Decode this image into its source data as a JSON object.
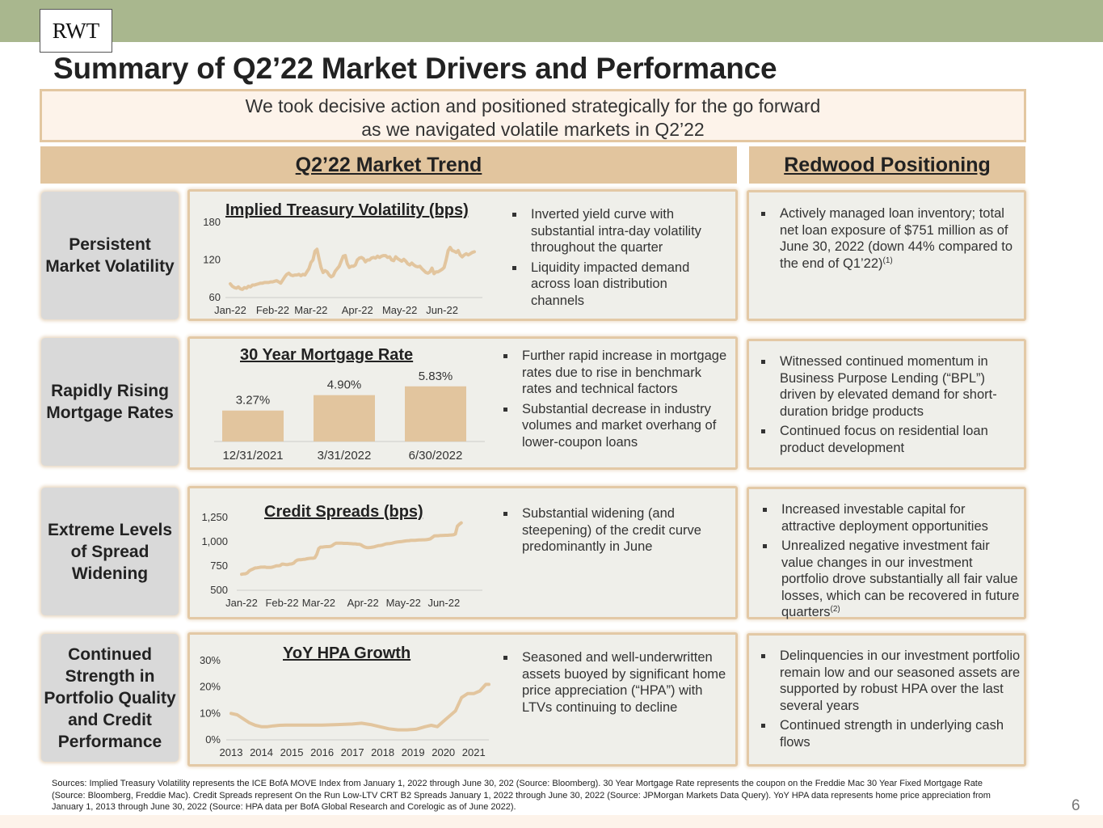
{
  "header": {
    "logo": "RWT",
    "title": "Summary of Q2’22 Market Drivers and Performance",
    "banner_line1": "We took decisive action and positioned strategically for the go forward",
    "banner_line2": "as we navigated volatile markets in Q2’22"
  },
  "columns": {
    "market_trend": "Q2’22 Market Trend",
    "positioning": "Redwood Positioning"
  },
  "rows": [
    {
      "label": "Persistent Market Volatility",
      "trend_bullets": [
        "Inverted yield curve with substantial intra-day volatility throughout the quarter",
        "Liquidity impacted demand across loan distribution channels"
      ],
      "positioning_bullets": [
        {
          "text": "Actively managed loan inventory; total net loan exposure of $751 million as of June 30, 2022 (down 44% compared to the end of Q1’22)",
          "sup": "(1)"
        }
      ]
    },
    {
      "label": "Rapidly Rising Mortgage Rates",
      "trend_bullets": [
        "Further rapid increase in mortgage rates due to rise in benchmark rates and technical factors",
        "Substantial decrease in industry volumes and market overhang of lower-coupon loans"
      ],
      "positioning_bullets": [
        {
          "text": "Witnessed continued momentum in Business Purpose Lending (“BPL”) driven by elevated demand for short-duration bridge products",
          "sup": ""
        },
        {
          "text": "Continued focus on residential loan product development",
          "sup": ""
        }
      ]
    },
    {
      "label": "Extreme Levels of Spread Widening",
      "trend_bullets": [
        "Substantial widening (and steepening) of the credit curve predominantly in June"
      ],
      "positioning_bullets": [
        {
          "text": "Increased investable capital for attractive deployment opportunities",
          "sup": ""
        },
        {
          "text": "Unrealized negative investment fair value changes in our investment portfolio drove substantially all fair value losses, which can be recovered in future quarters",
          "sup": "(2)"
        }
      ]
    },
    {
      "label": "Continued Strength in Portfolio Quality and Credit Performance",
      "trend_bullets": [
        "Seasoned and well-underwritten assets buoyed by significant home price appreciation (“HPA”) with LTVs continuing to decline"
      ],
      "positioning_bullets": [
        {
          "text": "Delinquencies in our investment portfolio remain low and our seasoned assets are supported by robust HPA over the last several years",
          "sup": ""
        },
        {
          "text": "Continued strength in underlying cash flows",
          "sup": ""
        }
      ]
    }
  ],
  "chart_data": [
    {
      "id": "volatility",
      "type": "line",
      "title": "Implied Treasury Volatility (bps)",
      "xlabel": "",
      "ylabel": "",
      "ylim": [
        60,
        180
      ],
      "yticks": [
        "60",
        "120",
        "180"
      ],
      "ytick_values": [
        60,
        120,
        180
      ],
      "xticks": [
        "Jan-22",
        "Feb-22",
        "Mar-22",
        "Apr-22",
        "May-22",
        "Jun-22"
      ],
      "xlim": [
        0,
        125
      ],
      "xtick_positions": [
        0,
        21,
        40,
        63,
        84,
        105
      ],
      "color": "#e2c59e",
      "values": [
        82,
        78,
        76,
        75,
        77,
        74,
        73,
        76,
        75,
        78,
        77,
        80,
        80,
        81,
        82,
        83,
        83,
        84,
        84,
        84,
        85,
        85,
        86,
        87,
        85,
        83,
        88,
        93,
        97,
        99,
        96,
        95,
        96,
        96,
        97,
        95,
        97,
        96,
        101,
        106,
        116,
        120,
        134,
        137,
        122,
        108,
        100,
        103,
        101,
        96,
        93,
        95,
        102,
        106,
        110,
        118,
        126,
        127,
        114,
        108,
        110,
        110,
        112,
        120,
        123,
        124,
        122,
        117,
        120,
        120,
        123,
        124,
        123,
        126,
        124,
        126,
        127,
        127,
        124,
        125,
        120,
        119,
        125,
        122,
        120,
        118,
        121,
        118,
        114,
        112,
        115,
        112,
        110,
        109,
        110,
        106,
        103,
        100,
        99,
        101,
        107,
        98,
        101,
        101,
        103,
        105,
        108,
        120,
        135,
        140,
        135,
        134,
        132,
        135,
        128,
        125,
        128,
        130,
        128,
        130,
        132,
        133
      ]
    },
    {
      "id": "mortgage",
      "type": "bar",
      "title": "30 Year Mortgage Rate",
      "categories": [
        "12/31/2021",
        "3/31/2022",
        "6/30/2022"
      ],
      "values": [
        3.27,
        4.9,
        5.83
      ],
      "labels": [
        "3.27%",
        "4.90%",
        "5.83%"
      ],
      "ylim": [
        0,
        7
      ],
      "color": "#e2c59e"
    },
    {
      "id": "spreads",
      "type": "line",
      "title": "Credit Spreads (bps)",
      "ylim": [
        500,
        1250
      ],
      "yticks": [
        "500",
        "750",
        "1,000",
        "1,250"
      ],
      "ytick_values": [
        500,
        750,
        1000,
        1250
      ],
      "xticks": [
        "Jan-22",
        "Feb-22",
        "Mar-22",
        "Apr-22",
        "May-22",
        "Jun-22"
      ],
      "xlim": [
        0,
        125
      ],
      "xtick_positions": [
        0,
        21,
        40,
        63,
        84,
        105
      ],
      "color": "#e2c59e",
      "values": [
        665,
        668,
        670,
        680,
        700,
        712,
        720,
        730,
        732,
        735,
        738,
        738,
        740,
        735,
        735,
        735,
        738,
        745,
        752,
        752,
        755,
        770,
        768,
        765,
        765,
        770,
        772,
        780,
        800,
        812,
        815,
        815,
        818,
        820,
        825,
        828,
        830,
        830,
        835,
        870,
        930,
        945,
        945,
        948,
        950,
        950,
        952,
        960,
        975,
        985,
        985,
        985,
        985,
        983,
        983,
        983,
        982,
        980,
        978,
        978,
        975,
        974,
        968,
        955,
        945,
        940,
        940,
        942,
        945,
        948,
        955,
        960,
        962,
        965,
        972,
        978,
        980,
        982,
        985,
        990,
        995,
        998,
        1000,
        1002,
        1005,
        1008,
        1010,
        1012,
        1015,
        1015,
        1015,
        1017,
        1018,
        1018,
        1020,
        1020,
        1022,
        1025,
        1030,
        1045,
        1060,
        1062,
        1062,
        1064,
        1065,
        1066,
        1067,
        1067,
        1068,
        1070,
        1072,
        1080,
        1160,
        1180,
        1195
      ]
    },
    {
      "id": "hpa",
      "type": "line",
      "title": "YoY HPA Growth",
      "ylim": [
        0,
        30
      ],
      "yticks": [
        "0%",
        "10%",
        "20%",
        "30%"
      ],
      "ytick_values": [
        0,
        10,
        20,
        30
      ],
      "xticks": [
        "2013",
        "2014",
        "2015",
        "2016",
        "2017",
        "2018",
        "2019",
        "2020",
        "2021"
      ],
      "xlim": [
        2013,
        2021.5
      ],
      "xtick_positions": [
        2013,
        2014,
        2015,
        2016,
        2017,
        2018,
        2019,
        2020,
        2021
      ],
      "color": "#e2c59e",
      "x": [
        2013.0,
        2013.2,
        2013.4,
        2013.6,
        2013.8,
        2014.0,
        2014.2,
        2014.4,
        2014.6,
        2014.8,
        2015.0,
        2015.5,
        2016.0,
        2016.5,
        2017.0,
        2017.3,
        2017.6,
        2017.9,
        2018.2,
        2018.5,
        2018.8,
        2019.1,
        2019.4,
        2019.6,
        2019.8,
        2020.0,
        2020.2,
        2020.4,
        2020.6,
        2020.8,
        2021.0,
        2021.2,
        2021.4,
        2021.5
      ],
      "values": [
        10,
        9.5,
        8,
        6.5,
        5.5,
        5,
        5,
        5.3,
        5.5,
        5.6,
        5.6,
        5.6,
        5.6,
        5.8,
        6,
        6.3,
        5.8,
        5,
        4.2,
        3.8,
        3.8,
        4,
        5,
        5.5,
        5,
        7,
        9,
        11,
        16,
        17.5,
        17.5,
        18.5,
        21,
        21
      ]
    }
  ],
  "footnote": "Sources: Implied Treasury Volatility represents the ICE BofA MOVE Index from January 1, 2022 through June 30, 202 (Source: Bloomberg). 30 Year Mortgage Rate represents the coupon on the Freddie Mac 30 Year Fixed Mortgage Rate (Source: Bloomberg, Freddie Mac). Credit Spreads represent On the Run Low-LTV CRT B2 Spreads January 1, 2022 through June 30, 2022 (Source: JPMorgan Markets Data Query). YoY HPA data represents home price appreciation from January 1, 2013 through June 30, 2022 (Source: HPA data per BofA Global Research and Corelogic as of June 2022).",
  "page_number": "6"
}
